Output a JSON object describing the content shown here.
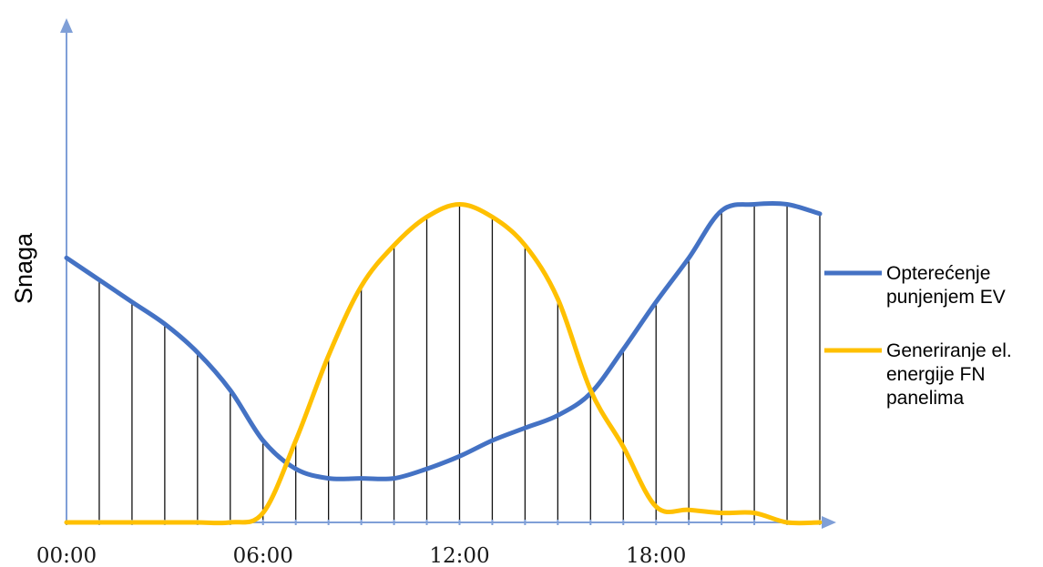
{
  "chart_data": {
    "type": "line",
    "title": "",
    "xlabel": "",
    "ylabel": "Snaga",
    "x_range": [
      0,
      23
    ],
    "x_ticks": [
      {
        "value": 0,
        "label": "00:00"
      },
      {
        "value": 6,
        "label": "06:00"
      },
      {
        "value": 12,
        "label": "12:00"
      },
      {
        "value": 18,
        "label": "18:00"
      }
    ],
    "y_ticks_shown": false,
    "grid": false,
    "hatch_lines": "vertical line at every hour from 0 to 23 between curves",
    "legend_position": "right",
    "x": [
      0,
      1,
      2,
      3,
      4,
      5,
      6,
      7,
      8,
      9,
      10,
      11,
      12,
      13,
      14,
      15,
      16,
      17,
      18,
      19,
      20,
      21,
      22,
      23
    ],
    "series": [
      {
        "name": "Opterećenje punjenjem EV",
        "color": "#4472c4",
        "values": [
          0.84,
          0.77,
          0.7,
          0.63,
          0.54,
          0.42,
          0.26,
          0.17,
          0.14,
          0.14,
          0.14,
          0.17,
          0.21,
          0.26,
          0.3,
          0.34,
          0.41,
          0.55,
          0.7,
          0.84,
          0.99,
          1.01,
          1.01,
          0.98
        ]
      },
      {
        "name": "Generiranje el. energije FN panelima",
        "color": "#ffc000",
        "values": [
          0.0,
          0.0,
          0.0,
          0.0,
          0.0,
          0.0,
          0.03,
          0.26,
          0.53,
          0.75,
          0.88,
          0.97,
          1.01,
          0.97,
          0.88,
          0.71,
          0.42,
          0.24,
          0.05,
          0.04,
          0.03,
          0.03,
          0.0,
          0.0
        ]
      }
    ]
  },
  "legend": [
    {
      "lines": [
        "Opterećenje",
        "punjenjem EV"
      ],
      "color": "#4472c4"
    },
    {
      "lines": [
        "Generiranje el.",
        "energije FN",
        "panelima"
      ],
      "color": "#ffc000"
    }
  ],
  "axis_color": "#7f9fd7"
}
